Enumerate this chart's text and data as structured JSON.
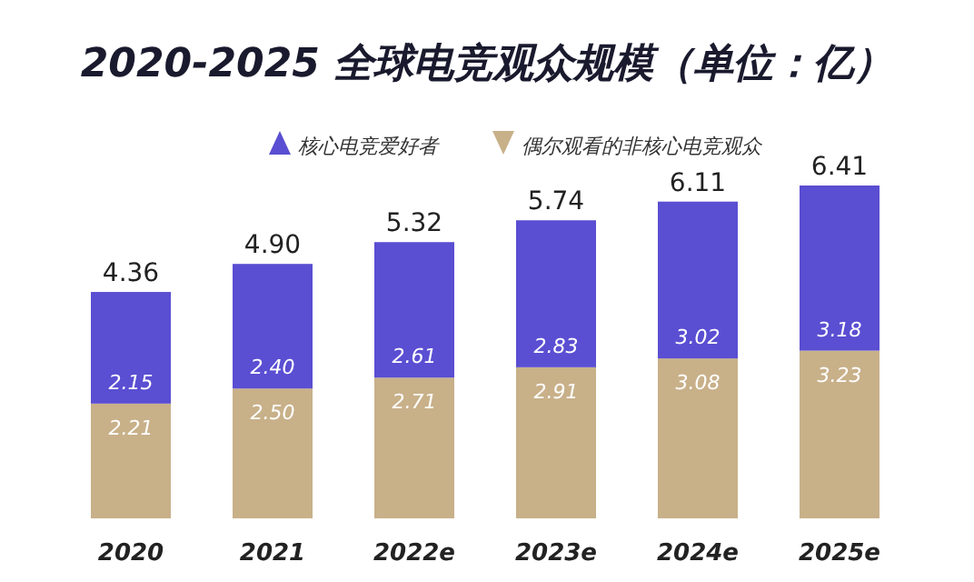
{
  "chart_data": {
    "type": "bar",
    "title": "2020-2025 全球电竞观众规模（单位：亿）",
    "categories": [
      "2020",
      "2021",
      "2022e",
      "2023e",
      "2024e",
      "2025e"
    ],
    "stacked": true,
    "legend": "top",
    "series": [
      {
        "name": "偶尔观看的非核心电竞观众",
        "color": "#c8b089",
        "values": [
          2.21,
          2.5,
          2.71,
          2.91,
          3.08,
          3.23
        ],
        "value_labels": [
          "2.21",
          "2.50",
          "2.71",
          "2.91",
          "3.08",
          "3.23"
        ]
      },
      {
        "name": "核心电竞爱好者",
        "color": "#5a4ed2",
        "values": [
          2.15,
          2.4,
          2.61,
          2.83,
          3.02,
          3.18
        ],
        "value_labels": [
          "2.15",
          "2.40",
          "2.61",
          "2.83",
          "3.02",
          "3.18"
        ]
      }
    ],
    "totals": [
      "4.36",
      "4.90",
      "5.32",
      "5.74",
      "6.11",
      "6.41"
    ]
  }
}
